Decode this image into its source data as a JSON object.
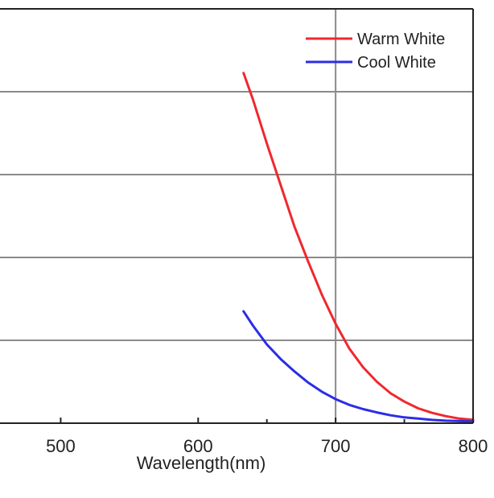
{
  "chart_data": {
    "type": "line",
    "xlabel": "Wavelength(nm)",
    "ylabel": "",
    "title": "",
    "xlim": [
      450,
      800
    ],
    "ylim": [
      0,
      1
    ],
    "x_ticks": [
      500,
      600,
      700,
      800
    ],
    "grid": true,
    "legend_position": "top-right",
    "series": [
      {
        "name": "Warm White",
        "color": "#f0282e",
        "x": [
          633,
          640,
          650,
          660,
          670,
          680,
          690,
          700,
          710,
          720,
          730,
          740,
          750,
          760,
          770,
          780,
          790,
          800
        ],
        "values": [
          0.845,
          0.78,
          0.675,
          0.575,
          0.475,
          0.39,
          0.31,
          0.24,
          0.18,
          0.135,
          0.1,
          0.072,
          0.052,
          0.036,
          0.025,
          0.017,
          0.011,
          0.008
        ]
      },
      {
        "name": "Cool White",
        "color": "#2b2de6",
        "x": [
          633,
          640,
          650,
          660,
          670,
          680,
          690,
          700,
          710,
          720,
          730,
          740,
          750,
          760,
          770,
          780,
          790,
          800
        ],
        "values": [
          0.27,
          0.235,
          0.19,
          0.155,
          0.125,
          0.098,
          0.076,
          0.058,
          0.044,
          0.034,
          0.026,
          0.019,
          0.014,
          0.011,
          0.008,
          0.006,
          0.005,
          0.004
        ]
      }
    ]
  }
}
